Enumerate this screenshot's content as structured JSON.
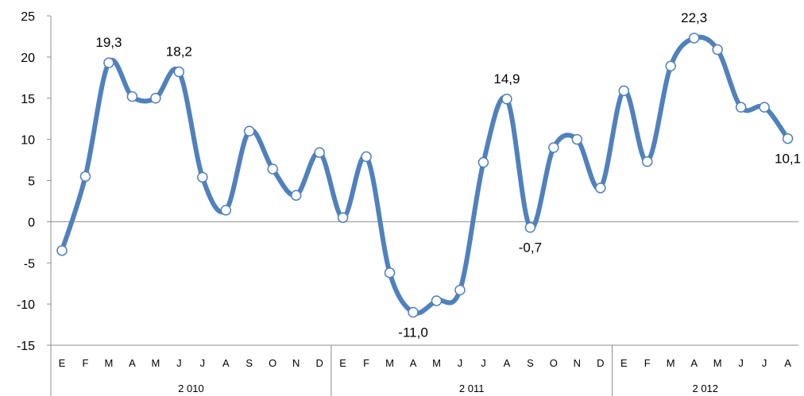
{
  "chart_data": {
    "type": "line",
    "title": "",
    "xlabel": "",
    "ylabel": "",
    "ylim": [
      -15,
      25
    ],
    "yticks": [
      -15,
      -10,
      -5,
      0,
      5,
      10,
      15,
      20,
      25
    ],
    "ytick_labels": [
      "-15",
      "-10",
      "-5",
      "0",
      "5",
      "10",
      "15",
      "20",
      "25"
    ],
    "grid": false,
    "legend": "none",
    "categories": [
      "E",
      "F",
      "M",
      "A",
      "M",
      "J",
      "J",
      "A",
      "S",
      "O",
      "N",
      "D",
      "E",
      "F",
      "M",
      "A",
      "M",
      "J",
      "J",
      "A",
      "S",
      "O",
      "N",
      "D",
      "E",
      "F",
      "M",
      "A",
      "M",
      "J",
      "J",
      "A"
    ],
    "year_groups": [
      {
        "label": "2 010",
        "count": 12
      },
      {
        "label": "2 011",
        "count": 12
      },
      {
        "label": "2 012",
        "count": 8
      }
    ],
    "series": [
      {
        "values": [
          -3.5,
          5.5,
          19.3,
          15.2,
          15.0,
          18.2,
          5.4,
          1.4,
          11.0,
          6.4,
          3.2,
          8.4,
          0.5,
          7.9,
          -6.2,
          -11.0,
          -9.6,
          -8.3,
          7.2,
          14.9,
          -0.7,
          9.0,
          10.0,
          4.1,
          15.9,
          7.3,
          18.9,
          22.3,
          20.9,
          13.9,
          13.9,
          10.1
        ],
        "color": "#4F81BD"
      }
    ],
    "data_labels": [
      {
        "index": 2,
        "text": "19,3",
        "position": "above"
      },
      {
        "index": 5,
        "text": "18,2",
        "position": "above"
      },
      {
        "index": 15,
        "text": "-11,0",
        "position": "below"
      },
      {
        "index": 19,
        "text": "14,9",
        "position": "above"
      },
      {
        "index": 20,
        "text": "-0,7",
        "position": "below"
      },
      {
        "index": 27,
        "text": "22,3",
        "position": "above"
      },
      {
        "index": 31,
        "text": "10,1",
        "position": "below"
      }
    ]
  }
}
